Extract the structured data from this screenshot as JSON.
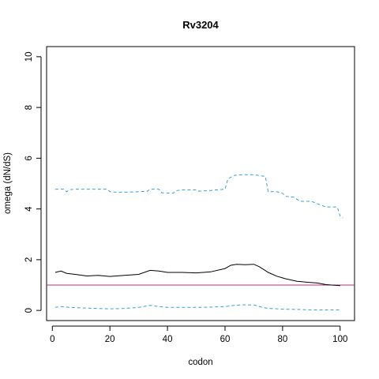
{
  "chart_data": {
    "type": "line",
    "title": "Rv3204",
    "xlabel": "codon",
    "ylabel": "omega (dN/dS)",
    "xlim": [
      -2,
      105
    ],
    "ylim": [
      -0.4,
      10.4
    ],
    "xticks": [
      0,
      20,
      40,
      60,
      80,
      100
    ],
    "yticks": [
      0,
      2,
      4,
      6,
      8,
      10
    ],
    "reference_line": {
      "y": 1,
      "color": "#b0307f"
    },
    "series": [
      {
        "style": "dashed",
        "color": "#3aa0d8",
        "x": [
          1,
          4,
          5,
          6,
          8,
          12,
          16,
          19,
          20,
          22,
          26,
          30,
          33,
          34,
          37,
          38,
          42,
          43,
          45,
          50,
          51,
          54,
          57,
          60,
          61,
          62,
          63,
          66,
          70,
          74,
          75,
          78,
          80,
          81,
          84,
          86,
          88,
          90,
          95,
          99,
          100,
          101
        ],
        "y": [
          4.78,
          4.78,
          4.68,
          4.76,
          4.78,
          4.78,
          4.78,
          4.78,
          4.68,
          4.66,
          4.66,
          4.68,
          4.7,
          4.78,
          4.78,
          4.64,
          4.62,
          4.72,
          4.75,
          4.75,
          4.7,
          4.72,
          4.75,
          4.78,
          5.18,
          5.25,
          5.32,
          5.35,
          5.35,
          5.28,
          4.68,
          4.68,
          4.62,
          4.5,
          4.46,
          4.3,
          4.3,
          4.3,
          4.08,
          4.08,
          3.72,
          3.65
        ]
      },
      {
        "style": "solid",
        "color": "#000000",
        "x": [
          1,
          3,
          5,
          8,
          12,
          16,
          20,
          25,
          30,
          34,
          37,
          40,
          45,
          50,
          55,
          60,
          62,
          64,
          67,
          70,
          72,
          75,
          78,
          81,
          85,
          88,
          92,
          95,
          97,
          100
        ],
        "y": [
          1.5,
          1.55,
          1.46,
          1.42,
          1.36,
          1.38,
          1.34,
          1.38,
          1.42,
          1.58,
          1.55,
          1.5,
          1.5,
          1.48,
          1.52,
          1.65,
          1.78,
          1.82,
          1.8,
          1.82,
          1.72,
          1.5,
          1.35,
          1.25,
          1.15,
          1.12,
          1.08,
          1.02,
          1.0,
          0.98
        ]
      },
      {
        "style": "dashed",
        "color": "#3aa0d8",
        "x": [
          1,
          3,
          6,
          10,
          15,
          20,
          25,
          30,
          34,
          37,
          40,
          45,
          50,
          55,
          60,
          63,
          66,
          70,
          73,
          75,
          80,
          85,
          90,
          95,
          100
        ],
        "y": [
          0.12,
          0.15,
          0.12,
          0.1,
          0.08,
          0.06,
          0.08,
          0.12,
          0.2,
          0.15,
          0.12,
          0.12,
          0.12,
          0.13,
          0.15,
          0.2,
          0.22,
          0.22,
          0.12,
          0.08,
          0.05,
          0.04,
          0.02,
          0.02,
          0.02
        ]
      }
    ]
  }
}
